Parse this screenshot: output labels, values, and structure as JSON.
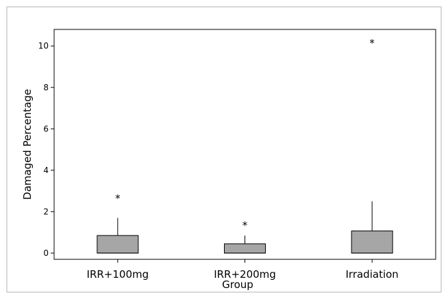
{
  "chart_data": {
    "type": "box",
    "xlabel": "Group",
    "ylabel": "Damaged Percentage",
    "ylim": [
      -0.3,
      10.8
    ],
    "yticks": [
      0,
      2,
      4,
      6,
      8,
      10
    ],
    "ytick_labels": [
      "0",
      "2",
      "4",
      "6",
      "8",
      "10"
    ],
    "categories": [
      "IRR+100mg",
      "IRR+200mg",
      "Irradiation"
    ],
    "boxes": [
      {
        "category": "IRR+100mg",
        "min": 0,
        "q1": 0,
        "median": 0,
        "q3": 0.85,
        "max": 1.7,
        "outliers": [
          2.7
        ]
      },
      {
        "category": "IRR+200mg",
        "min": 0,
        "q1": 0,
        "median": 0,
        "q3": 0.45,
        "max": 0.85,
        "outliers": [
          1.4
        ]
      },
      {
        "category": "Irradiation",
        "min": 0,
        "q1": 0,
        "median": 0,
        "q3": 1.07,
        "max": 2.5,
        "outliers": [
          10.2
        ]
      }
    ],
    "box_color": "#a6a6a6",
    "outlier_marker": "*",
    "grid": false
  }
}
